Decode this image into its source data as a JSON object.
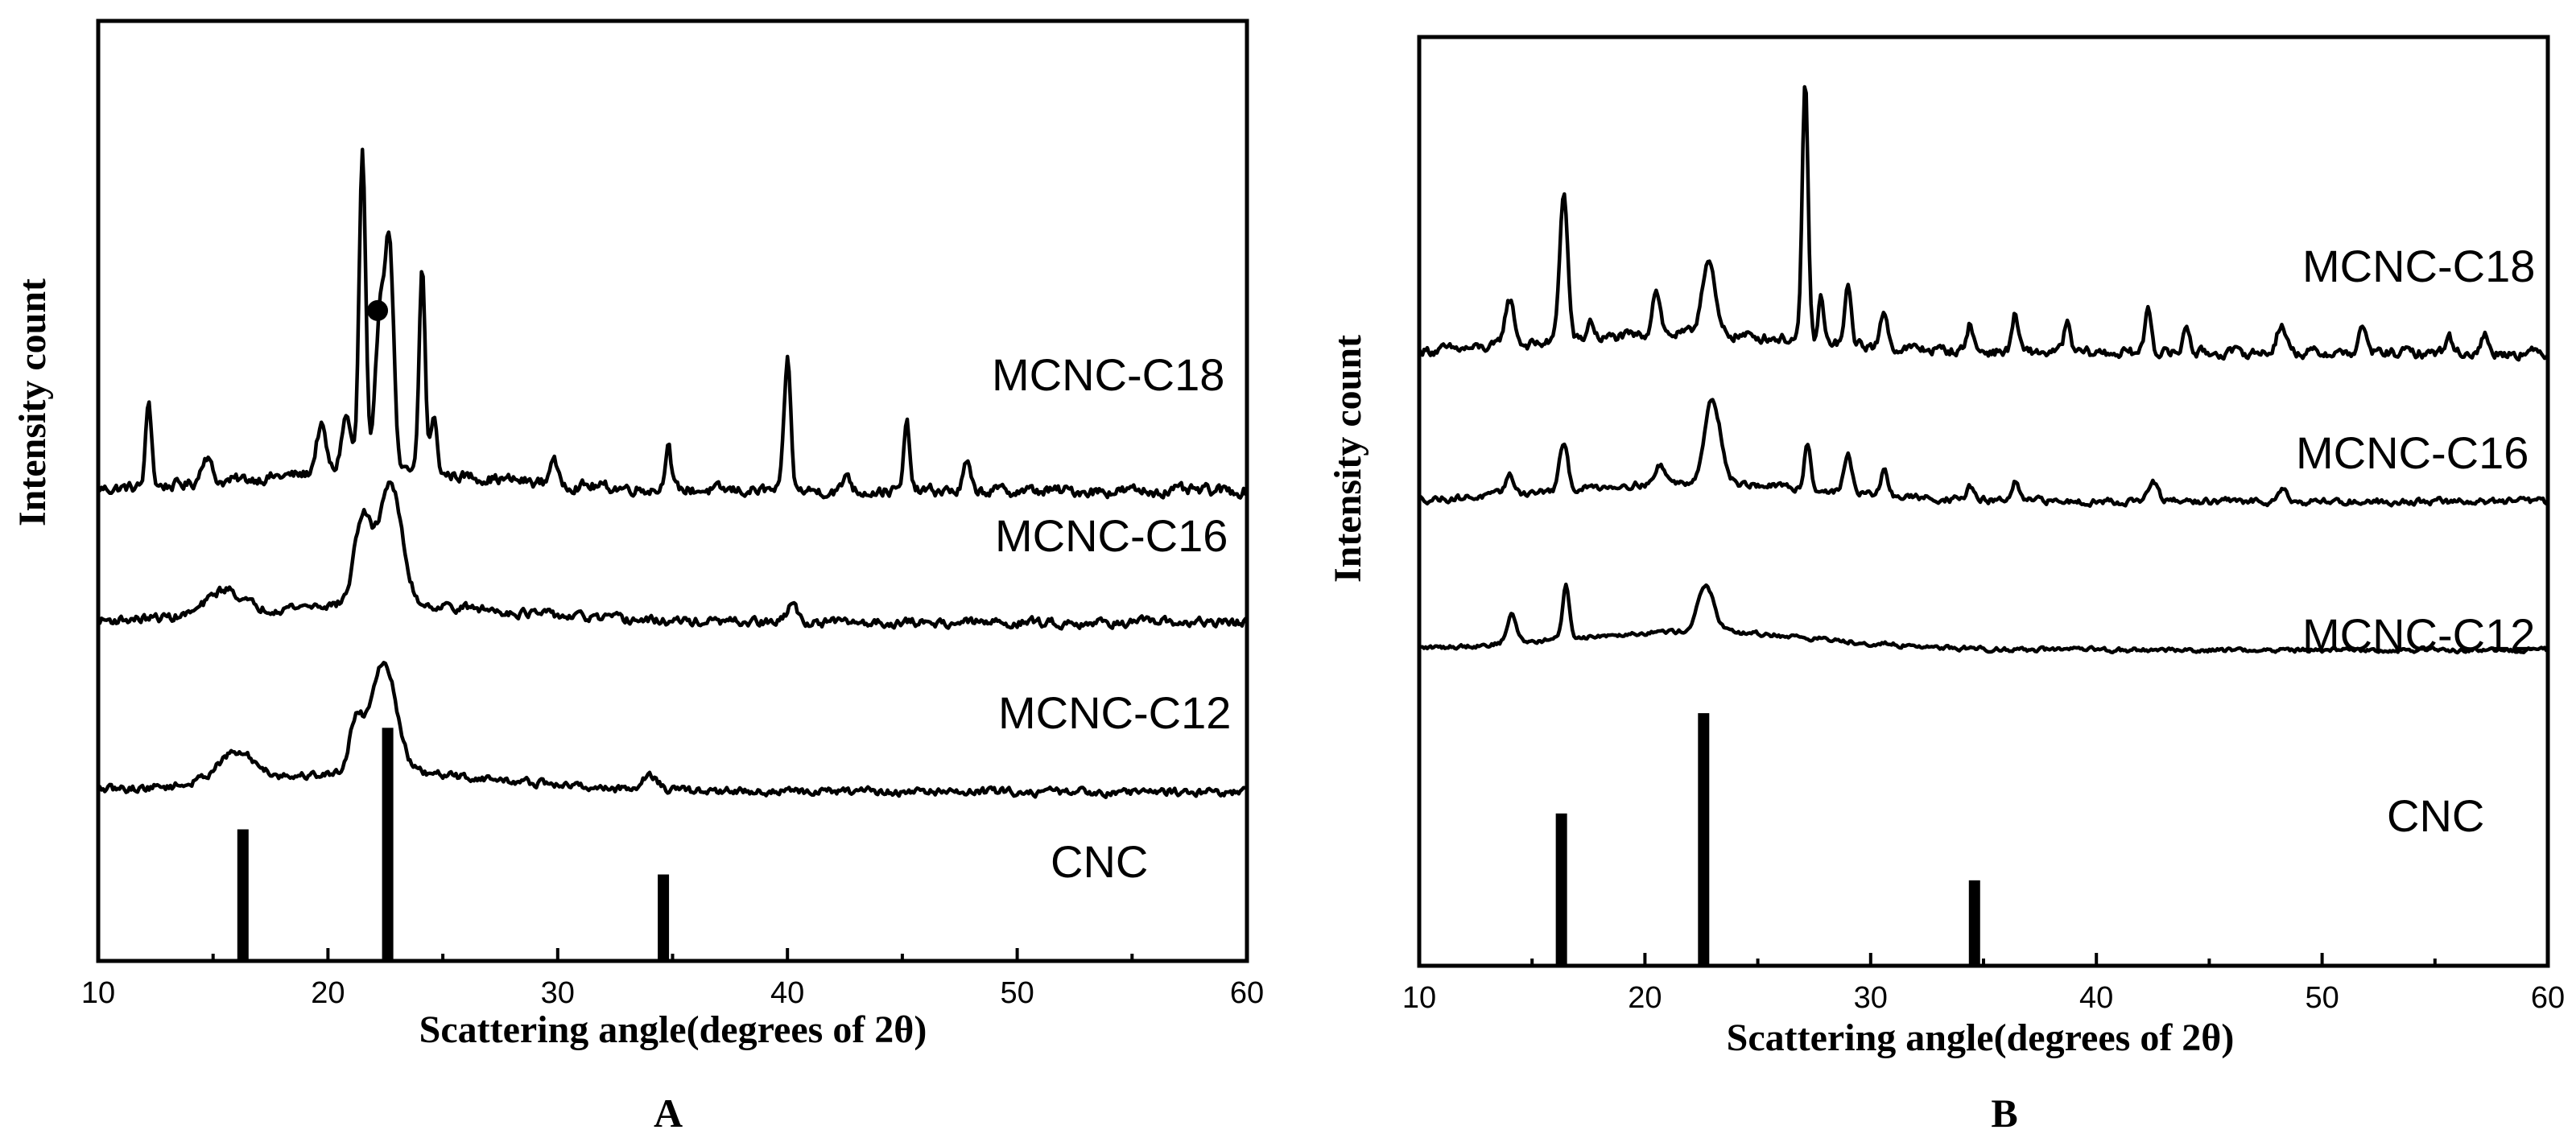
{
  "chart_data": [
    {
      "panel": "A",
      "type": "line",
      "xlabel": "Scattering angle(degrees of 2θ)",
      "ylabel": "Intensity count",
      "xlim": [
        10,
        60
      ],
      "xticks": [
        "10",
        "20",
        "30",
        "40",
        "50",
        "60"
      ],
      "series": [
        {
          "name": "MCNC-C18",
          "baseline": 0.5,
          "noise": 0.01,
          "peaks": [
            [
              12.2,
              0.09,
              0.18
            ],
            [
              14.7,
              0.03,
              0.3
            ],
            [
              19.7,
              0.05,
              0.3
            ],
            [
              20.8,
              0.06,
              0.3
            ],
            [
              21.5,
              0.34,
              0.2
            ],
            [
              22.3,
              0.18,
              0.3
            ],
            [
              22.7,
              0.22,
              0.25
            ],
            [
              24.1,
              0.22,
              0.18
            ],
            [
              24.6,
              0.06,
              0.2
            ],
            [
              29.8,
              0.03,
              0.2
            ],
            [
              34.8,
              0.05,
              0.18
            ],
            [
              40.0,
              0.14,
              0.2
            ],
            [
              42.6,
              0.02,
              0.2
            ],
            [
              45.2,
              0.07,
              0.18
            ],
            [
              47.8,
              0.03,
              0.2
            ]
          ],
          "marker": {
            "x": 22.3,
            "label": "●"
          }
        },
        {
          "name": "MCNC-C16",
          "baseline": 0.36,
          "noise": 0.008,
          "peaks": [
            [
              21.5,
              0.09,
              0.5
            ],
            [
              22.7,
              0.13,
              0.7
            ],
            [
              15.5,
              0.025,
              1.0
            ],
            [
              40.2,
              0.02,
              0.3
            ]
          ]
        },
        {
          "name": "MCNC-C12",
          "baseline": 0.18,
          "noise": 0.007,
          "peaks": [
            [
              21.2,
              0.05,
              0.4
            ],
            [
              22.4,
              0.12,
              0.8
            ],
            [
              16.0,
              0.03,
              1.2
            ],
            [
              34.0,
              0.015,
              0.5
            ]
          ]
        }
      ],
      "reference": {
        "name": "CNC",
        "sticks": [
          [
            16.3,
            0.35
          ],
          [
            22.6,
            0.62
          ],
          [
            34.6,
            0.23
          ]
        ]
      }
    },
    {
      "panel": "B",
      "type": "line",
      "xlabel": "Scattering angle(degrees of 2θ)",
      "ylabel": "Intensity count",
      "xlim": [
        10,
        60
      ],
      "xticks": [
        "10",
        "20",
        "30",
        "40",
        "50",
        "60"
      ],
      "series": [
        {
          "name": "MCNC-C18",
          "baseline": 0.66,
          "noise": 0.009,
          "peaks": [
            [
              14.0,
              0.05,
              0.3
            ],
            [
              16.4,
              0.16,
              0.25
            ],
            [
              17.6,
              0.02,
              0.2
            ],
            [
              20.5,
              0.05,
              0.25
            ],
            [
              22.8,
              0.08,
              0.4
            ],
            [
              27.1,
              0.28,
              0.18
            ],
            [
              27.8,
              0.05,
              0.15
            ],
            [
              29.0,
              0.06,
              0.2
            ],
            [
              30.6,
              0.04,
              0.2
            ],
            [
              34.4,
              0.03,
              0.2
            ],
            [
              36.4,
              0.04,
              0.2
            ],
            [
              38.7,
              0.03,
              0.2
            ],
            [
              42.3,
              0.05,
              0.2
            ],
            [
              44.0,
              0.03,
              0.2
            ],
            [
              48.2,
              0.03,
              0.3
            ],
            [
              51.8,
              0.03,
              0.2
            ],
            [
              55.6,
              0.02,
              0.2
            ],
            [
              57.2,
              0.02,
              0.2
            ]
          ]
        },
        {
          "name": "MCNC-C16",
          "baseline": 0.5,
          "noise": 0.006,
          "peaks": [
            [
              14.0,
              0.02,
              0.3
            ],
            [
              16.4,
              0.05,
              0.25
            ],
            [
              20.7,
              0.02,
              0.3
            ],
            [
              23.0,
              0.09,
              0.5
            ],
            [
              27.2,
              0.05,
              0.2
            ],
            [
              29.0,
              0.04,
              0.25
            ],
            [
              30.6,
              0.03,
              0.2
            ],
            [
              34.4,
              0.015,
              0.2
            ],
            [
              36.4,
              0.02,
              0.2
            ],
            [
              42.5,
              0.02,
              0.3
            ],
            [
              48.2,
              0.015,
              0.3
            ]
          ]
        },
        {
          "name": "MCNC-C12",
          "baseline": 0.34,
          "noise": 0.004,
          "peaks": [
            [
              14.1,
              0.03,
              0.3
            ],
            [
              16.5,
              0.06,
              0.2
            ],
            [
              22.7,
              0.05,
              0.5
            ]
          ]
        }
      ],
      "reference": {
        "name": "CNC",
        "sticks": [
          [
            16.3,
            0.41
          ],
          [
            22.6,
            0.68
          ],
          [
            34.6,
            0.23
          ]
        ]
      }
    }
  ]
}
